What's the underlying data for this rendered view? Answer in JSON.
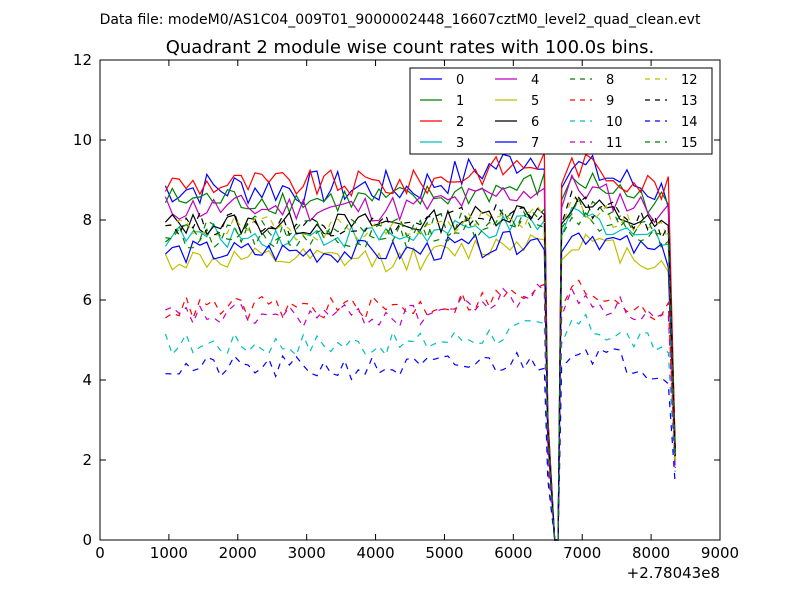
{
  "chart_data": {
    "type": "line",
    "suptitle": "Data file: modeM0/AS1C04_009T01_9000002448_16607cztM0_level2_quad_clean.evt",
    "title": "Quadrant 2 module wise count rates with 100.0s bins.",
    "xlabel": "",
    "ylabel": "",
    "x_offset_label": "+2.78043e8",
    "xlim": [
      0,
      9000
    ],
    "ylim": [
      0,
      12
    ],
    "xticks": [
      0,
      1000,
      2000,
      3000,
      4000,
      5000,
      6000,
      7000,
      8000,
      9000
    ],
    "yticks": [
      0,
      2,
      4,
      6,
      8,
      10,
      12
    ],
    "legend_position": "top-right",
    "segments": [
      {
        "x_start": 950,
        "x_end": 6450
      },
      {
        "x_start": 6750,
        "x_end": 8350
      }
    ],
    "drop_x": [
      6500,
      6600,
      6650,
      6700
    ],
    "series": [
      {
        "name": "0",
        "color": "#0000ff",
        "dash": "solid",
        "level": 8.8,
        "noise": 0.45,
        "bump": 0.9,
        "end": 2.3
      },
      {
        "name": "1",
        "color": "#008000",
        "dash": "solid",
        "level": 8.5,
        "noise": 0.35,
        "bump": 0.4,
        "end": 2.2
      },
      {
        "name": "2",
        "color": "#ff0000",
        "dash": "solid",
        "level": 8.9,
        "noise": 0.35,
        "bump": 0.6,
        "end": 2.3
      },
      {
        "name": "3",
        "color": "#00bfbf",
        "dash": "solid",
        "level": 7.6,
        "noise": 0.3,
        "bump": 0.3,
        "end": 2.0
      },
      {
        "name": "4",
        "color": "#bf00bf",
        "dash": "solid",
        "level": 8.3,
        "noise": 0.35,
        "bump": 0.5,
        "end": 2.1
      },
      {
        "name": "5",
        "color": "#bfbf00",
        "dash": "solid",
        "level": 7.0,
        "noise": 0.3,
        "bump": 0.6,
        "end": 2.0
      },
      {
        "name": "6",
        "color": "#000000",
        "dash": "solid",
        "level": 7.9,
        "noise": 0.3,
        "bump": 0.4,
        "end": 2.2
      },
      {
        "name": "7",
        "color": "#0000ff",
        "dash": "solid",
        "level": 7.2,
        "noise": 0.3,
        "bump": 0.3,
        "end": 2.1
      },
      {
        "name": "8",
        "color": "#008000",
        "dash": "dashed",
        "level": 7.6,
        "noise": 0.3,
        "bump": 0.4,
        "end": 2.1
      },
      {
        "name": "9",
        "color": "#ff0000",
        "dash": "dashed",
        "level": 5.8,
        "noise": 0.3,
        "bump": 0.4,
        "end": 1.8
      },
      {
        "name": "10",
        "color": "#00bfbf",
        "dash": "dashed",
        "level": 4.9,
        "noise": 0.3,
        "bump": 0.4,
        "end": 1.7
      },
      {
        "name": "11",
        "color": "#bf00bf",
        "dash": "dashed",
        "level": 5.6,
        "noise": 0.3,
        "bump": 0.6,
        "end": 1.8
      },
      {
        "name": "12",
        "color": "#bfbf00",
        "dash": "dashed",
        "level": 7.8,
        "noise": 0.3,
        "bump": 0.3,
        "end": 2.0
      },
      {
        "name": "13",
        "color": "#000000",
        "dash": "dashed",
        "level": 7.9,
        "noise": 0.3,
        "bump": 0.4,
        "end": 2.1
      },
      {
        "name": "14",
        "color": "#0000ff",
        "dash": "dashed",
        "level": 4.3,
        "noise": 0.3,
        "bump": 0.2,
        "end": 1.4
      },
      {
        "name": "15",
        "color": "#008000",
        "dash": "dashed",
        "level": 7.8,
        "noise": 0.3,
        "bump": 0.3,
        "end": 2.0
      }
    ]
  }
}
